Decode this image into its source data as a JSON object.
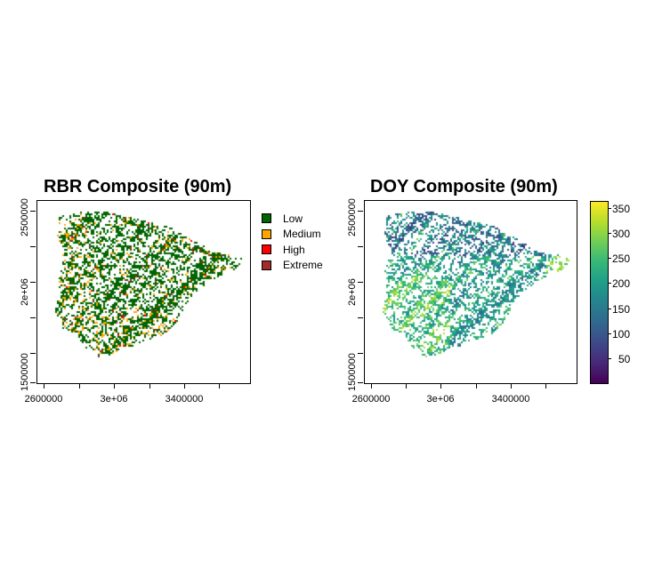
{
  "maps": [
    {
      "title": "RBR Composite (90m)",
      "x_tick_labels": [
        "2600000",
        "3e+06",
        "3400000"
      ],
      "y_tick_labels": [
        "2500000",
        "2e+06",
        "1500000"
      ],
      "legend": [
        {
          "label": "Low",
          "color": "#006400"
        },
        {
          "label": "Medium",
          "color": "#FFA500"
        },
        {
          "label": "High",
          "color": "#FF0000"
        },
        {
          "label": "Extreme",
          "color": "#A52A2A"
        }
      ]
    },
    {
      "title": "DOY Composite (90m)",
      "x_tick_labels": [
        "2600000",
        "3e+06",
        "3400000"
      ],
      "y_tick_labels": [
        "2500000",
        "2e+06",
        "1500000"
      ],
      "colorbar": {
        "labels": [
          "350",
          "300",
          "250",
          "200",
          "150",
          "100",
          "50"
        ],
        "range": [
          1,
          365
        ],
        "palette": "viridis"
      }
    }
  ]
}
